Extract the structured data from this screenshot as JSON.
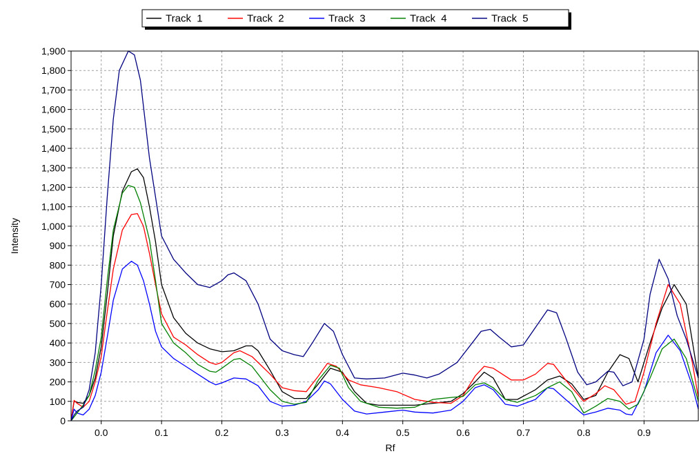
{
  "chart_data": {
    "type": "line",
    "title": "",
    "xlabel": "Rf",
    "ylabel": "Intensity",
    "xlim": [
      -0.05,
      0.99
    ],
    "ylim": [
      0,
      1900
    ],
    "x_ticks": [
      0.0,
      0.1,
      0.2,
      0.3,
      0.4,
      0.5,
      0.6,
      0.7,
      0.8,
      0.9
    ],
    "x_tick_labels": [
      "0.0",
      "0.1",
      "0.2",
      "0.3",
      "0.4",
      "0.5",
      "0.6",
      "0.7",
      "0.8",
      "0.9"
    ],
    "y_ticks": [
      0,
      100,
      200,
      300,
      400,
      500,
      600,
      700,
      800,
      900,
      1000,
      1100,
      1200,
      1300,
      1400,
      1500,
      1600,
      1700,
      1800,
      1900
    ],
    "y_tick_labels": [
      "0",
      "100",
      "200",
      "300",
      "400",
      "500",
      "600",
      "700",
      "800",
      "900",
      "1,000",
      "1,100",
      "1,200",
      "1,300",
      "1,400",
      "1,500",
      "1,600",
      "1,700",
      "1,800",
      "1,900"
    ],
    "grid": true,
    "legend_position": "top",
    "series": [
      {
        "name": "Track  1",
        "color": "#000000",
        "points": [
          [
            -0.05,
            0
          ],
          [
            -0.045,
            100
          ],
          [
            -0.04,
            95
          ],
          [
            -0.03,
            90
          ],
          [
            -0.02,
            130
          ],
          [
            -0.01,
            220
          ],
          [
            0.0,
            380
          ],
          [
            0.01,
            650
          ],
          [
            0.02,
            950
          ],
          [
            0.035,
            1180
          ],
          [
            0.05,
            1280
          ],
          [
            0.06,
            1295
          ],
          [
            0.07,
            1250
          ],
          [
            0.08,
            1100
          ],
          [
            0.09,
            920
          ],
          [
            0.1,
            700
          ],
          [
            0.12,
            530
          ],
          [
            0.14,
            450
          ],
          [
            0.16,
            400
          ],
          [
            0.18,
            370
          ],
          [
            0.2,
            355
          ],
          [
            0.22,
            360
          ],
          [
            0.24,
            385
          ],
          [
            0.25,
            385
          ],
          [
            0.26,
            360
          ],
          [
            0.28,
            260
          ],
          [
            0.3,
            150
          ],
          [
            0.32,
            115
          ],
          [
            0.34,
            115
          ],
          [
            0.36,
            190
          ],
          [
            0.38,
            270
          ],
          [
            0.4,
            250
          ],
          [
            0.42,
            150
          ],
          [
            0.44,
            90
          ],
          [
            0.46,
            80
          ],
          [
            0.48,
            80
          ],
          [
            0.5,
            80
          ],
          [
            0.52,
            80
          ],
          [
            0.55,
            90
          ],
          [
            0.58,
            100
          ],
          [
            0.6,
            140
          ],
          [
            0.62,
            200
          ],
          [
            0.635,
            250
          ],
          [
            0.65,
            220
          ],
          [
            0.67,
            110
          ],
          [
            0.69,
            110
          ],
          [
            0.72,
            160
          ],
          [
            0.74,
            210
          ],
          [
            0.76,
            230
          ],
          [
            0.78,
            190
          ],
          [
            0.8,
            110
          ],
          [
            0.82,
            130
          ],
          [
            0.84,
            250
          ],
          [
            0.86,
            340
          ],
          [
            0.875,
            320
          ],
          [
            0.89,
            200
          ],
          [
            0.91,
            400
          ],
          [
            0.93,
            580
          ],
          [
            0.95,
            700
          ],
          [
            0.97,
            600
          ],
          [
            0.99,
            220
          ]
        ]
      },
      {
        "name": "Track  2",
        "color": "#ff0000",
        "points": [
          [
            -0.05,
            0
          ],
          [
            -0.045,
            105
          ],
          [
            -0.04,
            90
          ],
          [
            -0.03,
            70
          ],
          [
            -0.02,
            100
          ],
          [
            -0.01,
            200
          ],
          [
            0.0,
            330
          ],
          [
            0.01,
            560
          ],
          [
            0.02,
            780
          ],
          [
            0.035,
            980
          ],
          [
            0.05,
            1060
          ],
          [
            0.06,
            1065
          ],
          [
            0.07,
            1000
          ],
          [
            0.08,
            860
          ],
          [
            0.09,
            700
          ],
          [
            0.1,
            550
          ],
          [
            0.12,
            430
          ],
          [
            0.14,
            390
          ],
          [
            0.16,
            340
          ],
          [
            0.18,
            300
          ],
          [
            0.19,
            290
          ],
          [
            0.2,
            300
          ],
          [
            0.22,
            350
          ],
          [
            0.23,
            360
          ],
          [
            0.25,
            330
          ],
          [
            0.28,
            240
          ],
          [
            0.3,
            170
          ],
          [
            0.32,
            155
          ],
          [
            0.34,
            150
          ],
          [
            0.36,
            230
          ],
          [
            0.375,
            295
          ],
          [
            0.39,
            280
          ],
          [
            0.41,
            210
          ],
          [
            0.43,
            185
          ],
          [
            0.46,
            170
          ],
          [
            0.49,
            150
          ],
          [
            0.52,
            110
          ],
          [
            0.55,
            95
          ],
          [
            0.58,
            90
          ],
          [
            0.6,
            130
          ],
          [
            0.62,
            230
          ],
          [
            0.635,
            280
          ],
          [
            0.65,
            270
          ],
          [
            0.68,
            210
          ],
          [
            0.7,
            210
          ],
          [
            0.72,
            240
          ],
          [
            0.74,
            295
          ],
          [
            0.75,
            290
          ],
          [
            0.77,
            210
          ],
          [
            0.8,
            100
          ],
          [
            0.82,
            140
          ],
          [
            0.835,
            180
          ],
          [
            0.85,
            160
          ],
          [
            0.87,
            85
          ],
          [
            0.885,
            100
          ],
          [
            0.9,
            250
          ],
          [
            0.92,
            500
          ],
          [
            0.94,
            700
          ],
          [
            0.96,
            600
          ],
          [
            0.98,
            300
          ],
          [
            0.99,
            120
          ]
        ]
      },
      {
        "name": "Track  3",
        "color": "#0000ff",
        "points": [
          [
            -0.05,
            0
          ],
          [
            -0.045,
            60
          ],
          [
            -0.04,
            40
          ],
          [
            -0.03,
            30
          ],
          [
            -0.02,
            60
          ],
          [
            -0.01,
            130
          ],
          [
            0.0,
            250
          ],
          [
            0.01,
            430
          ],
          [
            0.02,
            620
          ],
          [
            0.035,
            780
          ],
          [
            0.05,
            820
          ],
          [
            0.06,
            800
          ],
          [
            0.07,
            720
          ],
          [
            0.08,
            600
          ],
          [
            0.09,
            460
          ],
          [
            0.1,
            380
          ],
          [
            0.12,
            320
          ],
          [
            0.14,
            280
          ],
          [
            0.16,
            240
          ],
          [
            0.18,
            200
          ],
          [
            0.19,
            185
          ],
          [
            0.2,
            195
          ],
          [
            0.22,
            220
          ],
          [
            0.24,
            215
          ],
          [
            0.26,
            180
          ],
          [
            0.28,
            100
          ],
          [
            0.3,
            75
          ],
          [
            0.32,
            80
          ],
          [
            0.34,
            100
          ],
          [
            0.36,
            160
          ],
          [
            0.37,
            205
          ],
          [
            0.38,
            190
          ],
          [
            0.4,
            110
          ],
          [
            0.42,
            50
          ],
          [
            0.44,
            35
          ],
          [
            0.47,
            45
          ],
          [
            0.5,
            55
          ],
          [
            0.52,
            45
          ],
          [
            0.55,
            40
          ],
          [
            0.58,
            55
          ],
          [
            0.6,
            100
          ],
          [
            0.62,
            170
          ],
          [
            0.635,
            185
          ],
          [
            0.65,
            160
          ],
          [
            0.67,
            85
          ],
          [
            0.69,
            75
          ],
          [
            0.72,
            110
          ],
          [
            0.74,
            170
          ],
          [
            0.75,
            165
          ],
          [
            0.77,
            110
          ],
          [
            0.8,
            30
          ],
          [
            0.82,
            45
          ],
          [
            0.84,
            65
          ],
          [
            0.86,
            55
          ],
          [
            0.87,
            35
          ],
          [
            0.88,
            30
          ],
          [
            0.9,
            150
          ],
          [
            0.92,
            350
          ],
          [
            0.94,
            440
          ],
          [
            0.96,
            360
          ],
          [
            0.98,
            180
          ],
          [
            0.99,
            60
          ]
        ]
      },
      {
        "name": "Track  4",
        "color": "#008000",
        "points": [
          [
            -0.05,
            0
          ],
          [
            -0.045,
            20
          ],
          [
            -0.04,
            40
          ],
          [
            -0.03,
            80
          ],
          [
            -0.02,
            130
          ],
          [
            -0.01,
            260
          ],
          [
            0.0,
            430
          ],
          [
            0.01,
            720
          ],
          [
            0.02,
            980
          ],
          [
            0.035,
            1170
          ],
          [
            0.045,
            1210
          ],
          [
            0.055,
            1200
          ],
          [
            0.065,
            1120
          ],
          [
            0.08,
            930
          ],
          [
            0.09,
            720
          ],
          [
            0.1,
            500
          ],
          [
            0.12,
            400
          ],
          [
            0.14,
            350
          ],
          [
            0.16,
            290
          ],
          [
            0.18,
            255
          ],
          [
            0.19,
            250
          ],
          [
            0.2,
            270
          ],
          [
            0.22,
            315
          ],
          [
            0.23,
            320
          ],
          [
            0.25,
            280
          ],
          [
            0.28,
            160
          ],
          [
            0.3,
            100
          ],
          [
            0.32,
            85
          ],
          [
            0.34,
            95
          ],
          [
            0.36,
            210
          ],
          [
            0.38,
            285
          ],
          [
            0.395,
            270
          ],
          [
            0.41,
            170
          ],
          [
            0.43,
            100
          ],
          [
            0.46,
            70
          ],
          [
            0.49,
            65
          ],
          [
            0.52,
            70
          ],
          [
            0.55,
            110
          ],
          [
            0.58,
            120
          ],
          [
            0.6,
            125
          ],
          [
            0.62,
            185
          ],
          [
            0.635,
            195
          ],
          [
            0.65,
            170
          ],
          [
            0.67,
            110
          ],
          [
            0.69,
            95
          ],
          [
            0.72,
            130
          ],
          [
            0.74,
            170
          ],
          [
            0.76,
            200
          ],
          [
            0.78,
            150
          ],
          [
            0.8,
            40
          ],
          [
            0.82,
            75
          ],
          [
            0.84,
            115
          ],
          [
            0.86,
            100
          ],
          [
            0.875,
            60
          ],
          [
            0.89,
            85
          ],
          [
            0.91,
            220
          ],
          [
            0.93,
            370
          ],
          [
            0.95,
            420
          ],
          [
            0.97,
            320
          ],
          [
            0.99,
            100
          ]
        ]
      },
      {
        "name": "Track  5",
        "color": "#000080",
        "points": [
          [
            -0.05,
            0
          ],
          [
            -0.045,
            30
          ],
          [
            -0.04,
            50
          ],
          [
            -0.03,
            70
          ],
          [
            -0.02,
            160
          ],
          [
            -0.01,
            350
          ],
          [
            0.0,
            700
          ],
          [
            0.01,
            1150
          ],
          [
            0.02,
            1550
          ],
          [
            0.03,
            1800
          ],
          [
            0.045,
            1900
          ],
          [
            0.055,
            1880
          ],
          [
            0.065,
            1750
          ],
          [
            0.08,
            1350
          ],
          [
            0.09,
            1150
          ],
          [
            0.1,
            950
          ],
          [
            0.12,
            830
          ],
          [
            0.14,
            760
          ],
          [
            0.16,
            700
          ],
          [
            0.18,
            685
          ],
          [
            0.2,
            720
          ],
          [
            0.21,
            750
          ],
          [
            0.22,
            760
          ],
          [
            0.24,
            720
          ],
          [
            0.26,
            600
          ],
          [
            0.28,
            420
          ],
          [
            0.3,
            360
          ],
          [
            0.32,
            340
          ],
          [
            0.335,
            330
          ],
          [
            0.35,
            400
          ],
          [
            0.37,
            500
          ],
          [
            0.385,
            460
          ],
          [
            0.4,
            340
          ],
          [
            0.42,
            220
          ],
          [
            0.44,
            215
          ],
          [
            0.47,
            220
          ],
          [
            0.5,
            245
          ],
          [
            0.52,
            235
          ],
          [
            0.54,
            220
          ],
          [
            0.56,
            240
          ],
          [
            0.59,
            300
          ],
          [
            0.61,
            380
          ],
          [
            0.63,
            460
          ],
          [
            0.645,
            470
          ],
          [
            0.66,
            430
          ],
          [
            0.68,
            380
          ],
          [
            0.7,
            390
          ],
          [
            0.72,
            480
          ],
          [
            0.74,
            570
          ],
          [
            0.755,
            555
          ],
          [
            0.77,
            430
          ],
          [
            0.79,
            250
          ],
          [
            0.805,
            185
          ],
          [
            0.82,
            200
          ],
          [
            0.84,
            255
          ],
          [
            0.85,
            250
          ],
          [
            0.865,
            180
          ],
          [
            0.88,
            200
          ],
          [
            0.9,
            420
          ],
          [
            0.91,
            650
          ],
          [
            0.925,
            830
          ],
          [
            0.94,
            730
          ],
          [
            0.955,
            540
          ],
          [
            0.97,
            420
          ],
          [
            0.99,
            220
          ]
        ]
      }
    ]
  }
}
